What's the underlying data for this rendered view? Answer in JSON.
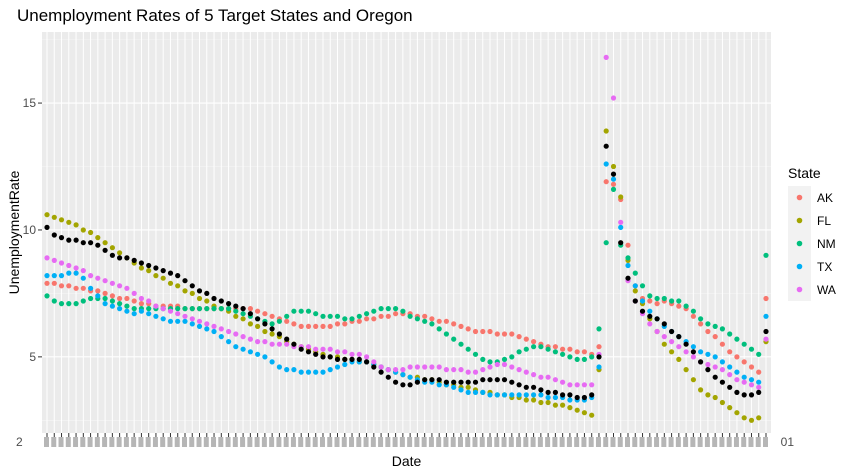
{
  "chart_data": {
    "type": "scatter",
    "title": "Unemployment Rates of 5 Target States and Oregon",
    "xlabel": "Date",
    "ylabel": "UnemploymentRate",
    "ylim": [
      2.0,
      17.8
    ],
    "yticks": [
      5,
      10,
      15
    ],
    "x_ticks_overplotted": true,
    "x_first_tick_label": "2",
    "x_last_tick_label": "01",
    "n_periods": 100,
    "grid": true,
    "legend_title": "State",
    "legend_position": "right",
    "series": [
      {
        "name": "AK",
        "color": "#F8766D",
        "values": [
          7.9,
          7.9,
          7.8,
          7.8,
          7.7,
          7.7,
          7.6,
          7.6,
          7.5,
          7.4,
          7.3,
          7.3,
          7.2,
          7.1,
          7.1,
          7.0,
          7.0,
          7.0,
          7.0,
          6.9,
          6.9,
          6.9,
          6.9,
          6.9,
          6.9,
          6.9,
          6.9,
          6.9,
          6.9,
          6.8,
          6.7,
          6.6,
          6.5,
          6.4,
          6.3,
          6.2,
          6.2,
          6.2,
          6.2,
          6.2,
          6.3,
          6.3,
          6.4,
          6.4,
          6.5,
          6.5,
          6.6,
          6.6,
          6.7,
          6.7,
          6.7,
          6.6,
          6.6,
          6.5,
          6.4,
          6.4,
          6.3,
          6.2,
          6.1,
          6.0,
          6.0,
          6.0,
          5.9,
          5.9,
          5.9,
          5.8,
          5.7,
          5.6,
          5.5,
          5.4,
          5.4,
          5.3,
          5.3,
          5.2,
          5.2,
          5.1,
          5.4,
          11.9,
          11.8,
          11.2,
          9.4,
          7.8,
          7.3,
          7.2,
          7.1,
          7.2,
          7.1,
          7.0,
          6.9,
          6.6,
          6.3,
          6.0,
          5.8,
          5.5,
          5.2,
          5.0,
          4.8,
          4.6,
          4.4,
          7.3
        ]
      },
      {
        "name": "FL",
        "color": "#A3A500",
        "values": [
          10.6,
          10.5,
          10.4,
          10.3,
          10.2,
          10.0,
          9.9,
          9.7,
          9.5,
          9.3,
          9.1,
          8.9,
          8.7,
          8.5,
          8.4,
          8.2,
          8.1,
          7.9,
          7.8,
          7.6,
          7.5,
          7.3,
          7.2,
          7.0,
          6.9,
          6.8,
          6.6,
          6.5,
          6.3,
          6.2,
          6.0,
          5.9,
          5.8,
          5.6,
          5.5,
          5.4,
          5.3,
          5.2,
          5.1,
          5.0,
          5.0,
          4.9,
          4.9,
          4.8,
          4.8,
          4.7,
          4.6,
          4.5,
          4.4,
          4.3,
          4.2,
          4.2,
          4.1,
          4.1,
          4.0,
          3.9,
          3.9,
          3.8,
          3.8,
          3.7,
          3.6,
          3.6,
          3.5,
          3.5,
          3.4,
          3.4,
          3.3,
          3.3,
          3.2,
          3.2,
          3.1,
          3.1,
          3.0,
          2.9,
          2.8,
          2.7,
          4.5,
          13.9,
          12.5,
          11.3,
          8.8,
          7.6,
          7.1,
          6.5,
          6.0,
          5.5,
          5.2,
          4.9,
          4.5,
          4.1,
          3.7,
          3.5,
          3.4,
          3.2,
          3.0,
          2.8,
          2.6,
          2.5,
          2.6,
          5.6
        ]
      },
      {
        "name": "NM",
        "color": "#00BF7D",
        "values": [
          7.4,
          7.2,
          7.1,
          7.1,
          7.1,
          7.2,
          7.3,
          7.3,
          7.3,
          7.2,
          7.1,
          7.0,
          6.9,
          6.9,
          6.9,
          6.9,
          6.9,
          6.9,
          6.9,
          6.9,
          6.9,
          6.9,
          6.9,
          6.9,
          6.9,
          6.9,
          6.8,
          6.7,
          6.6,
          6.5,
          6.4,
          6.3,
          6.4,
          6.6,
          6.8,
          6.8,
          6.8,
          6.7,
          6.6,
          6.6,
          6.6,
          6.5,
          6.5,
          6.6,
          6.7,
          6.8,
          6.9,
          6.9,
          6.9,
          6.8,
          6.6,
          6.5,
          6.4,
          6.3,
          6.1,
          5.9,
          5.7,
          5.5,
          5.3,
          5.1,
          4.9,
          4.8,
          4.8,
          4.9,
          5.0,
          5.2,
          5.3,
          5.4,
          5.4,
          5.3,
          5.2,
          5.1,
          5.0,
          4.9,
          4.9,
          5.0,
          6.1,
          9.5,
          11.6,
          9.4,
          8.9,
          8.3,
          7.8,
          7.4,
          7.3,
          7.3,
          7.2,
          7.2,
          7.0,
          6.8,
          6.5,
          6.3,
          6.2,
          6.1,
          5.9,
          5.7,
          5.5,
          5.3,
          5.1,
          9.0
        ]
      },
      {
        "name": "TX",
        "color": "#00B0F6",
        "values": [
          8.2,
          8.2,
          8.2,
          8.3,
          8.3,
          8.1,
          7.7,
          7.4,
          7.1,
          7.0,
          6.9,
          6.8,
          6.7,
          6.8,
          6.7,
          6.6,
          6.5,
          6.4,
          6.4,
          6.4,
          6.3,
          6.2,
          6.1,
          6.0,
          5.8,
          5.6,
          5.4,
          5.3,
          5.2,
          5.1,
          5.0,
          4.8,
          4.6,
          4.5,
          4.5,
          4.4,
          4.4,
          4.4,
          4.4,
          4.5,
          4.6,
          4.7,
          4.8,
          4.8,
          4.8,
          4.7,
          4.6,
          4.5,
          4.4,
          4.3,
          4.2,
          4.1,
          4.0,
          4.0,
          3.9,
          3.9,
          3.8,
          3.7,
          3.6,
          3.6,
          3.6,
          3.5,
          3.5,
          3.5,
          3.5,
          3.5,
          3.5,
          3.5,
          3.5,
          3.4,
          3.4,
          3.4,
          3.3,
          3.3,
          3.3,
          3.4,
          4.6,
          12.6,
          12.0,
          10.1,
          8.6,
          7.8,
          7.2,
          6.8,
          6.5,
          6.2,
          6.0,
          5.8,
          5.6,
          5.4,
          5.2,
          5.1,
          5.0,
          4.8,
          4.6,
          4.4,
          4.2,
          4.1,
          4.0,
          6.6
        ]
      },
      {
        "name": "WA",
        "color": "#E76BF3",
        "values": [
          8.9,
          8.8,
          8.7,
          8.6,
          8.5,
          8.4,
          8.2,
          8.1,
          8.0,
          7.9,
          7.8,
          7.7,
          7.5,
          7.3,
          7.2,
          7.0,
          6.9,
          6.8,
          6.7,
          6.6,
          6.5,
          6.4,
          6.3,
          6.2,
          6.1,
          6.0,
          5.9,
          5.8,
          5.7,
          5.6,
          5.6,
          5.5,
          5.5,
          5.5,
          5.4,
          5.4,
          5.4,
          5.3,
          5.3,
          5.3,
          5.2,
          5.2,
          5.1,
          5.1,
          5.0,
          4.8,
          4.6,
          4.5,
          4.5,
          4.5,
          4.6,
          4.6,
          4.6,
          4.6,
          4.6,
          4.5,
          4.5,
          4.5,
          4.4,
          4.4,
          4.5,
          4.6,
          4.7,
          4.7,
          4.6,
          4.5,
          4.4,
          4.3,
          4.2,
          4.2,
          4.1,
          4.0,
          3.9,
          3.9,
          3.9,
          3.9,
          5.1,
          16.8,
          15.2,
          10.3,
          8.0,
          7.2,
          6.7,
          6.3,
          6.0,
          5.8,
          5.6,
          5.4,
          5.2,
          5.0,
          4.8,
          4.7,
          4.6,
          4.5,
          4.3,
          4.1,
          4.0,
          3.9,
          3.8,
          5.7
        ]
      },
      {
        "name": "",
        "color": "#000000",
        "legend": false,
        "values": [
          10.1,
          9.8,
          9.7,
          9.6,
          9.6,
          9.5,
          9.5,
          9.4,
          9.2,
          9.0,
          8.9,
          8.9,
          8.8,
          8.7,
          8.6,
          8.5,
          8.4,
          8.3,
          8.2,
          8.0,
          7.8,
          7.6,
          7.5,
          7.3,
          7.2,
          7.1,
          7.0,
          6.9,
          6.7,
          6.5,
          6.3,
          6.1,
          5.9,
          5.7,
          5.5,
          5.3,
          5.2,
          5.1,
          5.0,
          5.0,
          4.9,
          4.9,
          4.9,
          4.9,
          4.8,
          4.6,
          4.4,
          4.2,
          4.0,
          3.9,
          3.9,
          4.0,
          4.1,
          4.1,
          4.1,
          4.0,
          4.0,
          4.0,
          4.0,
          4.0,
          4.1,
          4.1,
          4.1,
          4.1,
          4.0,
          3.9,
          3.8,
          3.8,
          3.7,
          3.6,
          3.6,
          3.5,
          3.5,
          3.4,
          3.4,
          3.5,
          5.0,
          13.3,
          12.2,
          9.5,
          8.1,
          7.2,
          6.8,
          6.6,
          6.5,
          6.3,
          6.0,
          5.8,
          5.5,
          5.2,
          4.8,
          4.5,
          4.2,
          4.0,
          3.8,
          3.6,
          3.5,
          3.5,
          3.6,
          6.0
        ]
      }
    ]
  }
}
